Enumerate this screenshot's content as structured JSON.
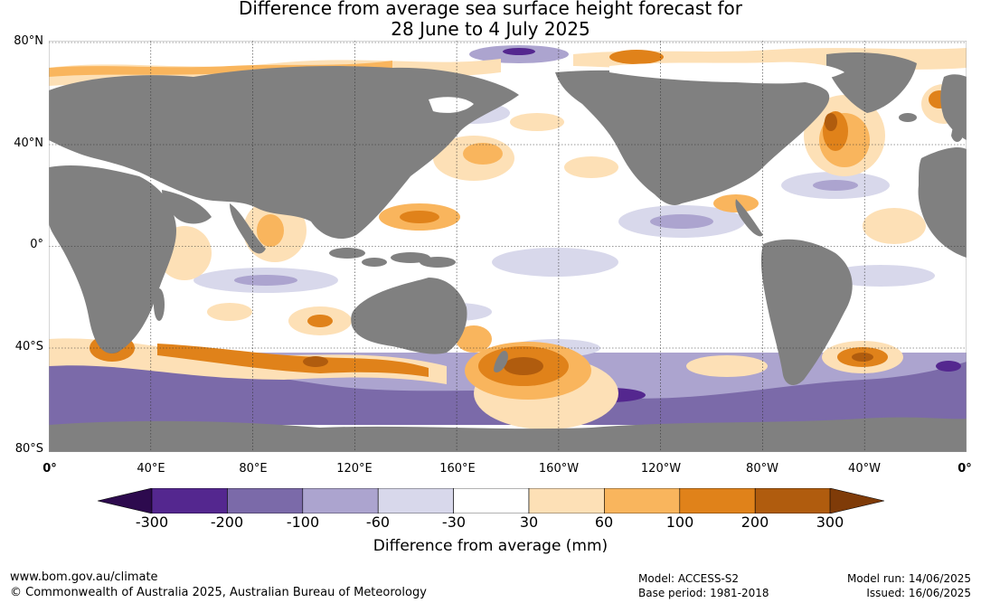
{
  "title": {
    "line1": "Difference from average sea surface height forecast for",
    "line2": "28 June to 4 July 2025"
  },
  "map": {
    "latitude_labels": [
      "80°N",
      "40°N",
      "0°",
      "40°S",
      "80°S"
    ],
    "longitude_labels": [
      "0°",
      "40°E",
      "80°E",
      "120°E",
      "160°E",
      "160°W",
      "120°W",
      "80°W",
      "40°W",
      "0°"
    ],
    "land_color": "#808080",
    "ice_color": "#ffffff"
  },
  "colorbar": {
    "title": "Difference from average (mm)",
    "tick_labels": [
      "-300",
      "-200",
      "-100",
      "-60",
      "-30",
      "30",
      "60",
      "100",
      "200",
      "300"
    ],
    "colors": [
      "#2d0a4e",
      "#54278f",
      "#7b6aa9",
      "#aca4cf",
      "#d8d8eb",
      "#ffffff",
      "#fde0b6",
      "#f9b55d",
      "#e0821a",
      "#b05c0e",
      "#7f3b08"
    ]
  },
  "footer": {
    "website": "www.bom.gov.au/climate",
    "copyright": "© Commonwealth of Australia 2025, Australian Bureau of Meteorology",
    "model": "Model: ACCESS-S2",
    "base_period": "Base period: 1981-2018",
    "model_run": "Model run: 14/06/2025",
    "issued": "Issued: 16/06/2025"
  }
}
